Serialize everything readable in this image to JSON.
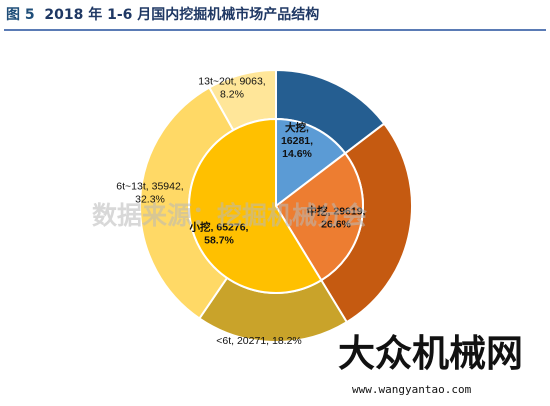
{
  "figure_label": "图 5",
  "figure_title": "2018 年 1-6 月国内挖掘机械市场产品结构",
  "watermark_text": "数据来源：挖掘机械分会",
  "brand_logo_text": "大众机械网",
  "brand_url": "www.wangyantao.com",
  "colors": {
    "title": "#1f3864",
    "rule": "#5a7bb5"
  },
  "chart_data": {
    "type": "pie",
    "subtype": "nested-donut",
    "title": "",
    "inner_ring": {
      "slices": [
        {
          "name": "大挖",
          "value": 16281,
          "percent": "14.6%",
          "color": "#5b9bd5",
          "label": "大挖,\n16281,\n14.6%"
        },
        {
          "name": "中挖",
          "value": 29619,
          "percent": "26.6%",
          "color": "#ed7d31",
          "label": "中挖, 29619,\n26.6%"
        },
        {
          "name": "小挖",
          "value": 65276,
          "percent": "58.7%",
          "color": "#ffc000",
          "label": "小挖, 65276,\n58.7%"
        }
      ]
    },
    "outer_ring": {
      "slices": [
        {
          "name": "大挖",
          "value": 16281,
          "percent": "14.6%",
          "color": "#255e91",
          "label": ""
        },
        {
          "name": "中挖",
          "value": 29619,
          "percent": "26.6%",
          "color": "#c55a11",
          "label": ""
        },
        {
          "name": "<6t",
          "value": 20271,
          "percent": "18.2%",
          "color": "#c9a32a",
          "label": "<6t, 20271, 18.2%"
        },
        {
          "name": "6t~13t",
          "value": 35942,
          "percent": "32.3%",
          "color": "#ffd966",
          "label": "6t~13t, 35942,\n32.3%"
        },
        {
          "name": "13t~20t",
          "value": 9063,
          "percent": "8.2%",
          "color": "#ffe699",
          "label": "13t~20t, 9063,\n8.2%"
        }
      ]
    },
    "legend": "none",
    "start_angle_deg": 0,
    "direction": "clockwise"
  }
}
